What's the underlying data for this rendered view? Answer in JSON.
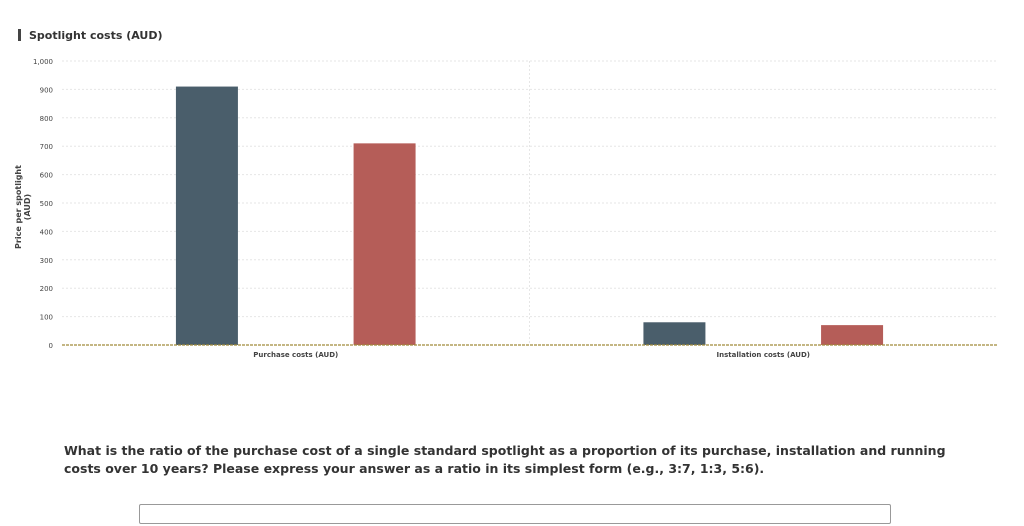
{
  "chart_data": {
    "type": "bar",
    "title": "Spotlight costs (AUD)",
    "ylabel": "Price per spotlight (AUD)",
    "xlabel": "",
    "categories": [
      "Purchase costs (AUD)",
      "Installation costs (AUD)"
    ],
    "series": [
      {
        "values": [
          910,
          80
        ],
        "color": "#4a5e6b"
      },
      {
        "values": [
          710,
          70
        ],
        "color": "#b55d58"
      }
    ],
    "ylim": [
      0,
      1000
    ],
    "yticks": [
      0,
      100,
      200,
      300,
      400,
      500,
      600,
      700,
      800,
      900,
      1000
    ],
    "ytick_labels": [
      "0",
      "100",
      "200",
      "300",
      "400",
      "500",
      "600",
      "700",
      "800",
      "900",
      "1,000"
    ],
    "grid": true,
    "baseline_color": "#a08a3a"
  },
  "question": {
    "text": "What is the ratio of the purchase cost of a single standard spotlight as a proportion of its purchase, installation and running costs over 10 years? Please express your answer as a ratio in its simplest form (e.g., 3:7, 1:3, 5:6)."
  },
  "answer": {
    "value": ""
  }
}
